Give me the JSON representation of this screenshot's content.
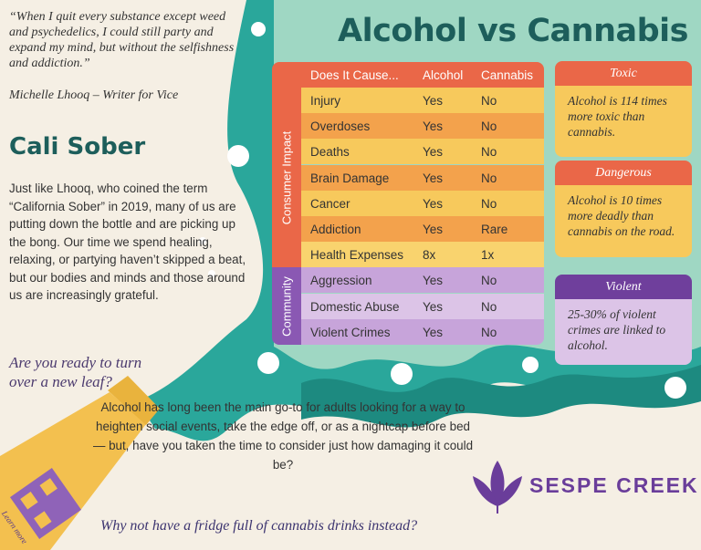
{
  "title": "Alcohol vs Cannabis",
  "quote": {
    "text": "“When I quit every substance except weed and psychedelics, I could still party and expand my mind, but without the selfishness and addiction.”",
    "author": "Michelle Lhooq – Writer for Vice"
  },
  "intro": {
    "title": "Cali Sober",
    "body": "Just like Lhooq, who coined the term “California Sober” in 2019, many of us are putting down the bottle and are picking up the bong. Our time we spend healing, relaxing, or partying haven’t skipped a beat, but our bodies and minds and those around us are increasingly grateful."
  },
  "question": "Are you ready to turn over a new leaf?",
  "table": {
    "header": [
      "Does It Cause...",
      "Alcohol",
      "Cannabis"
    ],
    "groups": [
      {
        "label": "Consumer Impact",
        "rows": [
          [
            "Injury",
            "Yes",
            "No"
          ],
          [
            "Overdoses",
            "Yes",
            "No"
          ],
          [
            "Deaths",
            "Yes",
            "No"
          ],
          [
            "Brain Damage",
            "Yes",
            "No"
          ],
          [
            "Cancer",
            "Yes",
            "No"
          ],
          [
            "Addiction",
            "Yes",
            "Rare"
          ],
          [
            "Health Expenses",
            "8x",
            "1x"
          ]
        ]
      },
      {
        "label": "Community",
        "rows": [
          [
            "Aggression",
            "Yes",
            "No"
          ],
          [
            "Domestic Abuse",
            "Yes",
            "No"
          ],
          [
            "Violent Crimes",
            "Yes",
            "No"
          ]
        ]
      }
    ]
  },
  "cards": [
    {
      "heading": "Toxic",
      "text": "Alcohol is 114 times more toxic than cannabis."
    },
    {
      "heading": "Dangerous",
      "text": "Alcohol is 10 times more deadly than cannabis on the road."
    },
    {
      "heading": "Violent",
      "text": "25-30% of violent crimes are linked to alcohol."
    }
  ],
  "bottom": {
    "text": "Alcohol has long been the main go-to for adults looking for a way to heighten social events, take the edge off, or as a nightcap before bed — but, have you taken the time to consider just how damaging it could be?",
    "cta": "Why not have a fridge full of cannabis drinks instead?"
  },
  "bottle_label": "Learn more",
  "brand": "SESPE CREEK"
}
